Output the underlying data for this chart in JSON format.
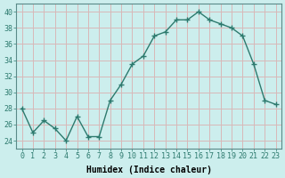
{
  "x": [
    0,
    1,
    2,
    3,
    4,
    5,
    6,
    7,
    8,
    9,
    10,
    11,
    12,
    13,
    14,
    15,
    16,
    17,
    18,
    19,
    20,
    21,
    22,
    23
  ],
  "y": [
    28,
    25,
    26.5,
    25.5,
    24,
    27,
    24.5,
    24.5,
    29,
    31,
    33.5,
    34.5,
    37,
    37.5,
    39,
    39,
    40,
    39,
    38.5,
    38,
    37,
    33.5,
    29,
    28.5
  ],
  "line_color": "#2d7a6e",
  "marker": "+",
  "marker_size": 4,
  "bg_color": "#cceeed",
  "grid_color": "#d8b8b8",
  "xlabel": "Humidex (Indice chaleur)",
  "xlim": [
    -0.5,
    23.5
  ],
  "ylim": [
    23,
    41
  ],
  "yticks": [
    24,
    26,
    28,
    30,
    32,
    34,
    36,
    38,
    40
  ],
  "xtick_labels": [
    "0",
    "1",
    "2",
    "3",
    "4",
    "5",
    "6",
    "7",
    "8",
    "9",
    "10",
    "11",
    "12",
    "13",
    "14",
    "15",
    "16",
    "17",
    "18",
    "19",
    "20",
    "21",
    "22",
    "23"
  ],
  "xlabel_fontsize": 7,
  "tick_fontsize": 6,
  "linewidth": 1.0,
  "markeredgewidth": 1.0
}
